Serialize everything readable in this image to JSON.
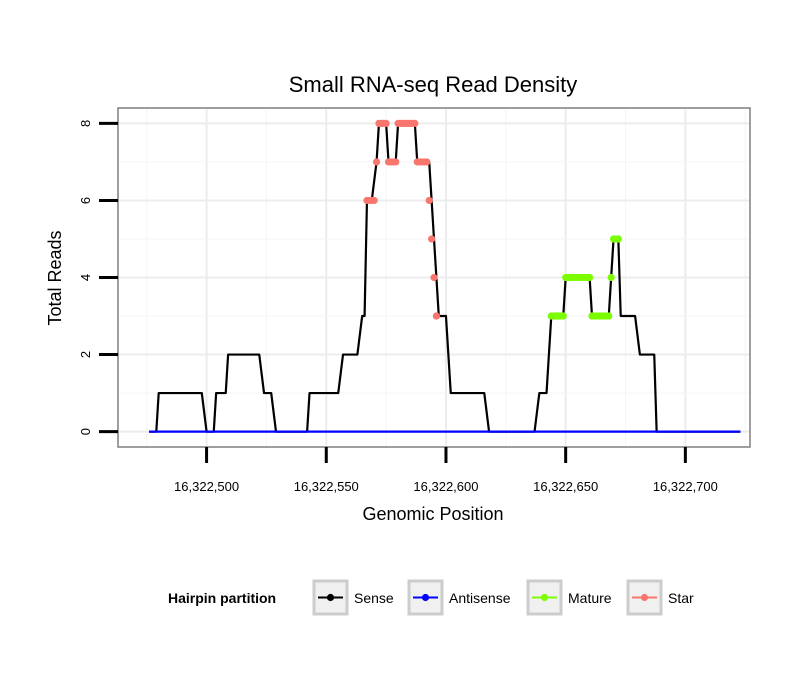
{
  "chart_data": {
    "type": "line",
    "title": "Small RNA-seq Read Density",
    "xlabel": "Genomic Position",
    "ylabel": "Total Reads",
    "xlim": [
      16322463,
      16322727
    ],
    "ylim": [
      -0.4,
      8.4
    ],
    "x_ticks": [
      16322500,
      16322550,
      16322600,
      16322650,
      16322700
    ],
    "x_tick_labels": [
      "16,322,500",
      "16,322,550",
      "16,322,600",
      "16,322,650",
      "16,322,700"
    ],
    "y_ticks": [
      0,
      2,
      4,
      6,
      8
    ],
    "y_tick_labels": [
      "0",
      "2",
      "4",
      "6",
      "8"
    ],
    "grid": true,
    "legend": {
      "title": "Hairpin partition",
      "position": "bottom",
      "entries": [
        {
          "name": "Sense",
          "color": "#000000"
        },
        {
          "name": "Antisense",
          "color": "#0000ff"
        },
        {
          "name": "Mature",
          "color": "#7cfc00"
        },
        {
          "name": "Star",
          "color": "#f8766d"
        }
      ]
    },
    "series": [
      {
        "name": "Sense",
        "color": "#000000",
        "points": [
          [
            16322476,
            0
          ],
          [
            16322479,
            0
          ],
          [
            16322480,
            1
          ],
          [
            16322498,
            1
          ],
          [
            16322500,
            0
          ],
          [
            16322503,
            0
          ],
          [
            16322504,
            1
          ],
          [
            16322508,
            1
          ],
          [
            16322509,
            2
          ],
          [
            16322522,
            2
          ],
          [
            16322524,
            1
          ],
          [
            16322527,
            1
          ],
          [
            16322529,
            0
          ],
          [
            16322542,
            0
          ],
          [
            16322543,
            1
          ],
          [
            16322555,
            1
          ],
          [
            16322557,
            2
          ],
          [
            16322563,
            2
          ],
          [
            16322565,
            3
          ],
          [
            16322566,
            3
          ],
          [
            16322567,
            6
          ],
          [
            16322569,
            6
          ],
          [
            16322571,
            7
          ],
          [
            16322572,
            8
          ],
          [
            16322575,
            8
          ],
          [
            16322576,
            7
          ],
          [
            16322579,
            7
          ],
          [
            16322580,
            8
          ],
          [
            16322587,
            8
          ],
          [
            16322588,
            7
          ],
          [
            16322593,
            7
          ],
          [
            16322594,
            6
          ],
          [
            16322595,
            5
          ],
          [
            16322596,
            4
          ],
          [
            16322597,
            3
          ],
          [
            16322600,
            3
          ],
          [
            16322602,
            1
          ],
          [
            16322616,
            1
          ],
          [
            16322618,
            0
          ],
          [
            16322637,
            0
          ],
          [
            16322639,
            1
          ],
          [
            16322642,
            1
          ],
          [
            16322644,
            3
          ],
          [
            16322649,
            3
          ],
          [
            16322650,
            4
          ],
          [
            16322660,
            4
          ],
          [
            16322661,
            3
          ],
          [
            16322668,
            3
          ],
          [
            16322669,
            4
          ],
          [
            16322670,
            5
          ],
          [
            16322672,
            5
          ],
          [
            16322673,
            3
          ],
          [
            16322679,
            3
          ],
          [
            16322681,
            2
          ],
          [
            16322687,
            2
          ],
          [
            16322688,
            0
          ],
          [
            16322723,
            0
          ]
        ]
      },
      {
        "name": "Antisense",
        "color": "#0000ff",
        "points": [
          [
            16322476,
            0
          ],
          [
            16322723,
            0
          ]
        ]
      },
      {
        "name": "Star",
        "color": "#f8766d",
        "points": [
          [
            16322567,
            6
          ],
          [
            16322568,
            6
          ],
          [
            16322569,
            6
          ],
          [
            16322570,
            6
          ],
          [
            16322571,
            7
          ],
          [
            16322572,
            8
          ],
          [
            16322573,
            8
          ],
          [
            16322574,
            8
          ],
          [
            16322575,
            8
          ],
          [
            16322576,
            7
          ],
          [
            16322577,
            7
          ],
          [
            16322578,
            7
          ],
          [
            16322579,
            7
          ],
          [
            16322580,
            8
          ],
          [
            16322581,
            8
          ],
          [
            16322582,
            8
          ],
          [
            16322583,
            8
          ],
          [
            16322584,
            8
          ],
          [
            16322585,
            8
          ],
          [
            16322586,
            8
          ],
          [
            16322587,
            8
          ],
          [
            16322588,
            7
          ],
          [
            16322589,
            7
          ],
          [
            16322590,
            7
          ],
          [
            16322591,
            7
          ],
          [
            16322592,
            7
          ],
          [
            16322593,
            6
          ],
          [
            16322594,
            5
          ],
          [
            16322595,
            4
          ],
          [
            16322596,
            3
          ]
        ]
      },
      {
        "name": "Mature",
        "color": "#7cfc00",
        "points": [
          [
            16322644,
            3
          ],
          [
            16322645,
            3
          ],
          [
            16322646,
            3
          ],
          [
            16322647,
            3
          ],
          [
            16322648,
            3
          ],
          [
            16322649,
            3
          ],
          [
            16322650,
            4
          ],
          [
            16322651,
            4
          ],
          [
            16322652,
            4
          ],
          [
            16322653,
            4
          ],
          [
            16322654,
            4
          ],
          [
            16322655,
            4
          ],
          [
            16322656,
            4
          ],
          [
            16322657,
            4
          ],
          [
            16322658,
            4
          ],
          [
            16322659,
            4
          ],
          [
            16322660,
            4
          ],
          [
            16322661,
            3
          ],
          [
            16322662,
            3
          ],
          [
            16322663,
            3
          ],
          [
            16322664,
            3
          ],
          [
            16322665,
            3
          ],
          [
            16322666,
            3
          ],
          [
            16322667,
            3
          ],
          [
            16322668,
            3
          ],
          [
            16322669,
            4
          ],
          [
            16322670,
            5
          ],
          [
            16322671,
            5
          ],
          [
            16322672,
            5
          ]
        ]
      }
    ]
  }
}
